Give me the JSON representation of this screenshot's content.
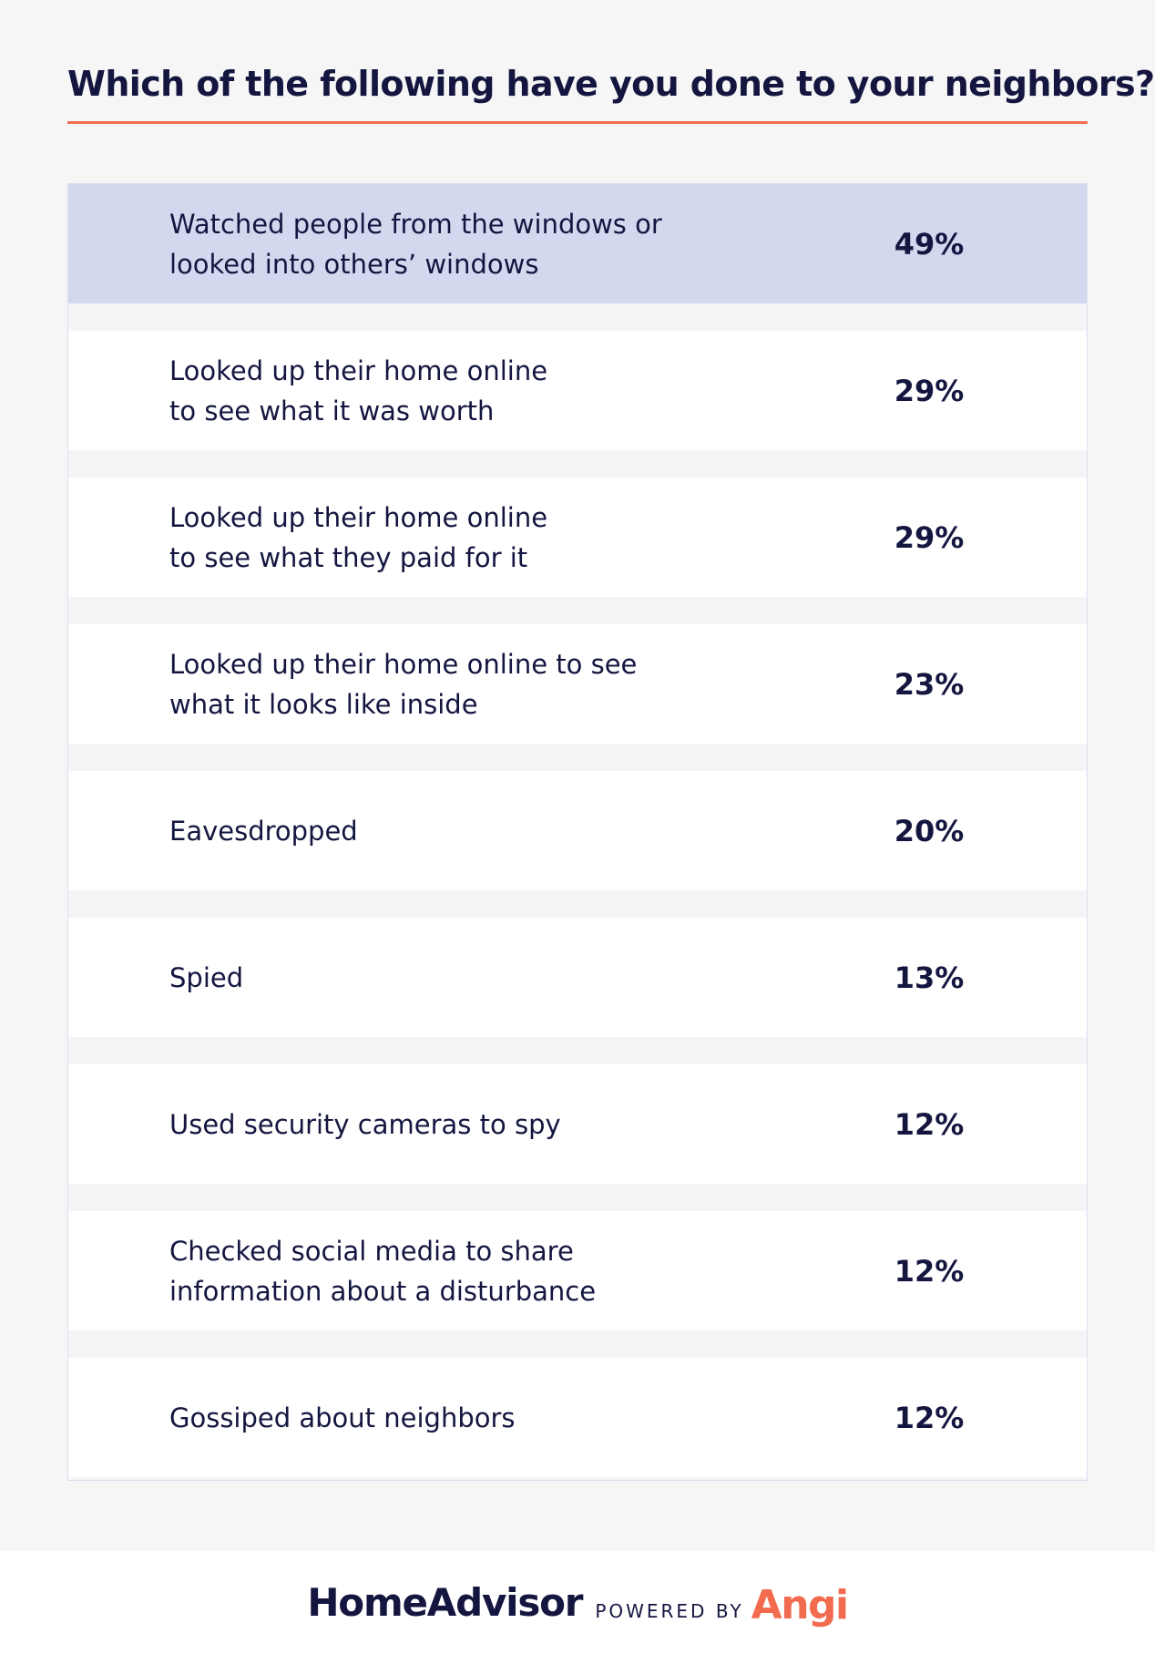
{
  "title": "Which of the following have you done to your neighbors?",
  "colors": {
    "title_rule": "#f26b4f",
    "highlight_row": "#d4d8ef",
    "row": "#ffffff",
    "text": "#141640",
    "angi": "#f26b4f"
  },
  "chart_data": {
    "type": "table",
    "title": "Which of the following have you done to your neighbors?",
    "categories": [
      "Watched people from the windows or\nlooked into others’ windows",
      "Looked up their home online\nto see what it was worth",
      "Looked up their home online\nto see what they paid for it",
      "Looked up their home online to see\nwhat it looks like inside",
      "Eavesdropped",
      "Spied",
      "Used security cameras to spy",
      "Checked social media to share\ninformation about a disturbance",
      "Gossiped about neighbors"
    ],
    "values": [
      49,
      29,
      29,
      23,
      20,
      13,
      12,
      12,
      12
    ],
    "value_labels": [
      "49%",
      "29%",
      "29%",
      "23%",
      "20%",
      "13%",
      "12%",
      "12%",
      "12%"
    ],
    "highlighted_index": 0
  },
  "footer": {
    "brand": "HomeAdvisor",
    "powered_by": "POWERED BY",
    "angi": "Angi"
  }
}
